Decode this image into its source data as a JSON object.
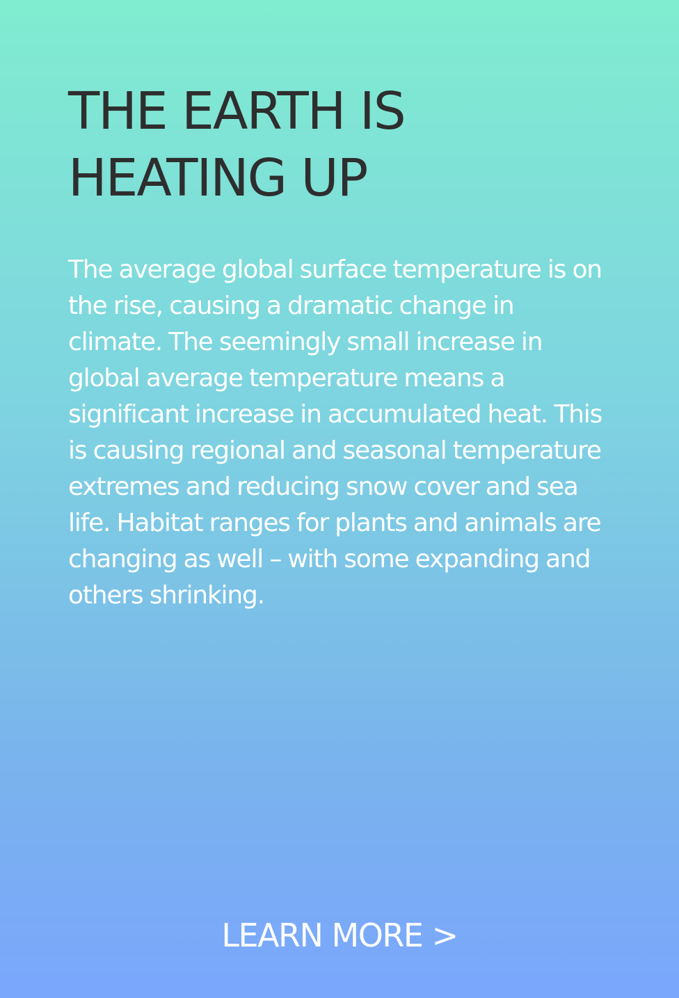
{
  "card": {
    "title": "THE EARTH IS HEATING UP",
    "body": "The average global surface temperature is on the rise, causing a dramatic change in climate. The seemingly small increase in global average temperature means a significant increase in accumulated heat. This is causing regional and seasonal temperature extremes and reducing snow cover and sea life. Habitat ranges for plants and animals are changing as well – with some expanding and others shrinking.",
    "cta_label": "LEARN MORE >"
  },
  "colors": {
    "gradient_top": "#80ecd0",
    "gradient_bottom": "#7aa6fc",
    "title_text": "#2e2e2e",
    "body_text": "#ffffff"
  }
}
